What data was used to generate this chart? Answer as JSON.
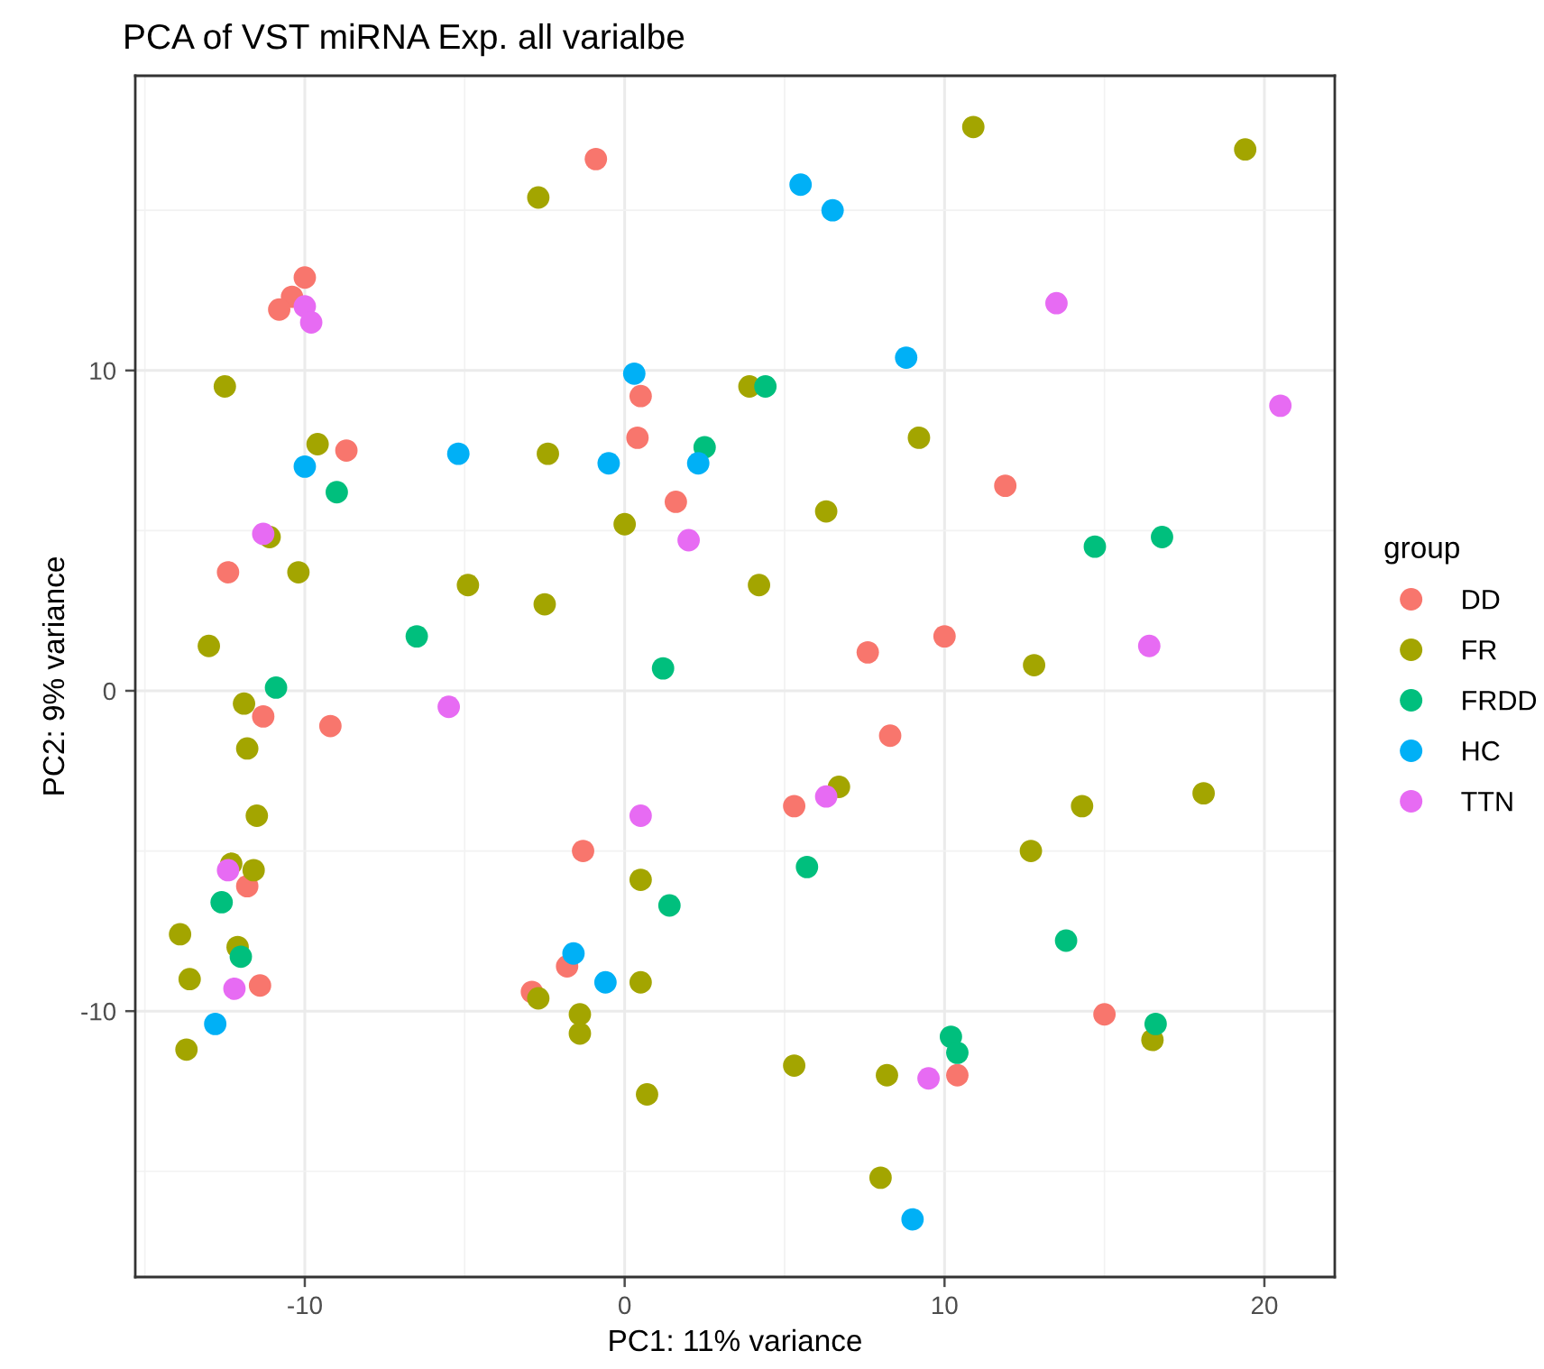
{
  "chart_data": {
    "type": "scatter",
    "title": "PCA of VST miRNA Exp. all varialbe",
    "xlabel": "PC1: 11% variance",
    "ylabel": "PC2: 9% variance",
    "legend_title": "group",
    "legend": "right",
    "grid": true,
    "marker": "circle",
    "xlim": [
      -15.3,
      22.2
    ],
    "ylim": [
      -18.3,
      19.2
    ],
    "xticks": [
      -10,
      0,
      10,
      20
    ],
    "yticks": [
      -10,
      0,
      10
    ],
    "series": [
      {
        "name": "DD",
        "color": "#f8766d",
        "x": [
          -0.9,
          -10.0,
          -10.4,
          -10.8,
          0.5,
          0.4,
          -8.7,
          1.6,
          -12.4,
          11.9,
          7.6,
          10.0,
          -11.3,
          -9.2,
          -1.3,
          -11.8,
          -11.4,
          -1.8,
          -2.9,
          8.3,
          5.3,
          15.0,
          10.4
        ],
        "values": [
          16.6,
          12.9,
          12.3,
          11.9,
          9.2,
          7.9,
          7.5,
          5.9,
          3.7,
          6.4,
          1.2,
          1.7,
          -0.8,
          -1.1,
          -5.0,
          -6.1,
          -9.2,
          -8.6,
          -9.4,
          -1.4,
          -3.6,
          -10.1,
          -12.0
        ]
      },
      {
        "name": "FR",
        "color": "#a3a500",
        "x": [
          -2.7,
          -12.5,
          -9.6,
          -2.4,
          -0.0,
          -11.1,
          -10.2,
          -4.9,
          -2.5,
          -13.0,
          10.9,
          19.4,
          3.9,
          9.2,
          6.3,
          4.2,
          12.8,
          -11.9,
          -11.8,
          -11.5,
          -12.3,
          -11.6,
          -13.9,
          -12.1,
          -13.6,
          -13.7,
          0.5,
          0.5,
          -2.7,
          -1.4,
          -1.4,
          0.7,
          6.7,
          14.3,
          18.1,
          12.7,
          16.5,
          8.2,
          5.3,
          8.0
        ],
        "values": [
          15.4,
          9.5,
          7.7,
          7.4,
          5.2,
          4.8,
          3.7,
          3.3,
          2.7,
          1.4,
          17.6,
          16.9,
          9.5,
          7.9,
          5.6,
          3.3,
          0.8,
          -0.4,
          -1.8,
          -3.9,
          -5.4,
          -5.6,
          -7.6,
          -8.0,
          -9.0,
          -11.2,
          -5.9,
          -9.1,
          -9.6,
          -10.1,
          -10.7,
          -12.6,
          -3.0,
          -3.6,
          -3.2,
          -5.0,
          -10.9,
          -12.0,
          -11.7,
          -15.2
        ]
      },
      {
        "name": "FRDD",
        "color": "#00bf7d",
        "x": [
          2.5,
          -9.0,
          -6.5,
          1.2,
          -10.9,
          4.4,
          14.7,
          16.8,
          1.4,
          -12.6,
          -12.0,
          5.7,
          13.8,
          16.6,
          10.2,
          10.4
        ],
        "values": [
          7.6,
          6.2,
          1.7,
          0.7,
          0.1,
          9.5,
          4.5,
          4.8,
          -6.7,
          -6.6,
          -8.3,
          -5.5,
          -7.8,
          -10.4,
          -10.8,
          -11.3
        ]
      },
      {
        "name": "HC",
        "color": "#00b0f6",
        "x": [
          0.3,
          2.3,
          -10.0,
          -5.2,
          -0.5,
          5.5,
          6.5,
          8.8,
          -12.8,
          -1.6,
          -0.6,
          9.0
        ],
        "values": [
          9.9,
          7.1,
          7.0,
          7.4,
          7.1,
          15.8,
          15.0,
          10.4,
          -10.4,
          -8.2,
          -9.1,
          -16.5
        ]
      },
      {
        "name": "TTN",
        "color": "#e76bf3",
        "x": [
          -10.0,
          -9.8,
          2.0,
          -11.3,
          13.5,
          20.5,
          16.4,
          -5.5,
          0.5,
          -12.4,
          -12.2,
          6.3,
          9.5
        ],
        "values": [
          12.0,
          11.5,
          4.7,
          4.9,
          12.1,
          8.9,
          1.4,
          -0.5,
          -3.9,
          -5.6,
          -9.3,
          -3.3,
          -12.1
        ]
      }
    ]
  }
}
